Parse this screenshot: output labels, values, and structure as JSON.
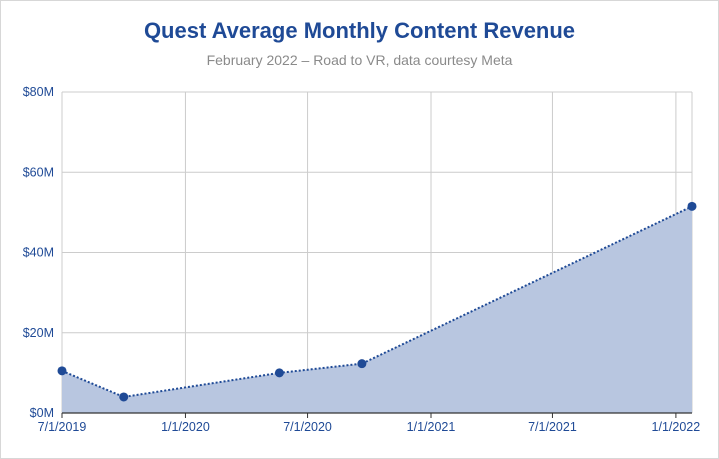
{
  "chart_data": {
    "type": "area",
    "title": "Quest Average Monthly Content Revenue",
    "subtitle": "February 2022 – Road to VR, data courtesy Meta",
    "xlabel": "",
    "ylabel": "",
    "x_axis": {
      "type": "date",
      "range": [
        "2019-07-01",
        "2022-01-25"
      ],
      "ticks": [
        "2019-07-01",
        "2020-01-01",
        "2020-07-01",
        "2021-01-01",
        "2021-07-01",
        "2022-01-01"
      ],
      "tick_labels": [
        "7/1/2019",
        "1/1/2020",
        "7/1/2020",
        "1/1/2021",
        "7/1/2021",
        "1/1/2022"
      ]
    },
    "y_axis": {
      "range": [
        0,
        80
      ],
      "ticks": [
        0,
        20,
        40,
        60,
        80
      ],
      "tick_labels": [
        "$0M",
        "$20M",
        "$40M",
        "$60M",
        "$80M"
      ]
    },
    "series": [
      {
        "x": [
          "2019-07-01",
          "2019-10-01",
          "2020-05-20",
          "2020-09-20",
          "2022-01-25"
        ],
        "y": [
          10.5,
          4,
          10,
          12.3,
          51.5
        ]
      }
    ],
    "grid": true,
    "legend": "none",
    "colors": {
      "fill": "#b8c6e0",
      "line": "#1f4a96",
      "marker": "#1f4a96",
      "grid": "#cccccc",
      "axis": "#333333"
    }
  }
}
